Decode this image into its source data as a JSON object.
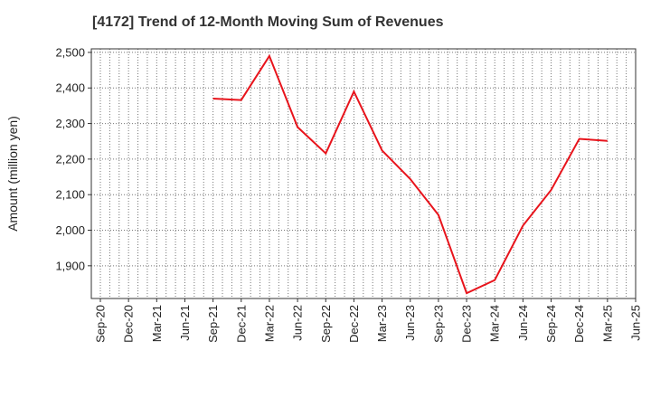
{
  "chart_data": {
    "type": "line",
    "title": "[4172]  Trend of 12-Month Moving Sum of Revenues",
    "ylabel": "Amount (million yen)",
    "xlabel": "",
    "x_ticks": [
      "Sep-20",
      "Dec-20",
      "Mar-21",
      "Jun-21",
      "Sep-21",
      "Dec-21",
      "Mar-22",
      "Jun-22",
      "Sep-22",
      "Dec-22",
      "Mar-23",
      "Jun-23",
      "Sep-23",
      "Dec-23",
      "Mar-24",
      "Jun-24",
      "Sep-24",
      "Dec-24",
      "Mar-25",
      "Jun-25"
    ],
    "y_ticks": [
      1900,
      2000,
      2100,
      2200,
      2300,
      2400,
      2500
    ],
    "y_tick_labels": [
      "1,900",
      "2,000",
      "2,100",
      "2,200",
      "2,300",
      "2,400",
      "2,500"
    ],
    "ylim": [
      1808,
      2510
    ],
    "grid": true,
    "series": [
      {
        "color": "#e8141c",
        "x": [
          "Sep-21",
          "Dec-21",
          "Mar-22",
          "Jun-22",
          "Sep-22",
          "Dec-22",
          "Mar-23",
          "Jun-23",
          "Sep-23",
          "Dec-23",
          "Mar-24",
          "Jun-24",
          "Sep-24",
          "Dec-24",
          "Mar-25"
        ],
        "values": [
          2370,
          2366,
          2490,
          2290,
          2216,
          2390,
          2224,
          2144,
          2043,
          1823,
          1860,
          2013,
          2113,
          2257,
          2251
        ]
      }
    ]
  }
}
